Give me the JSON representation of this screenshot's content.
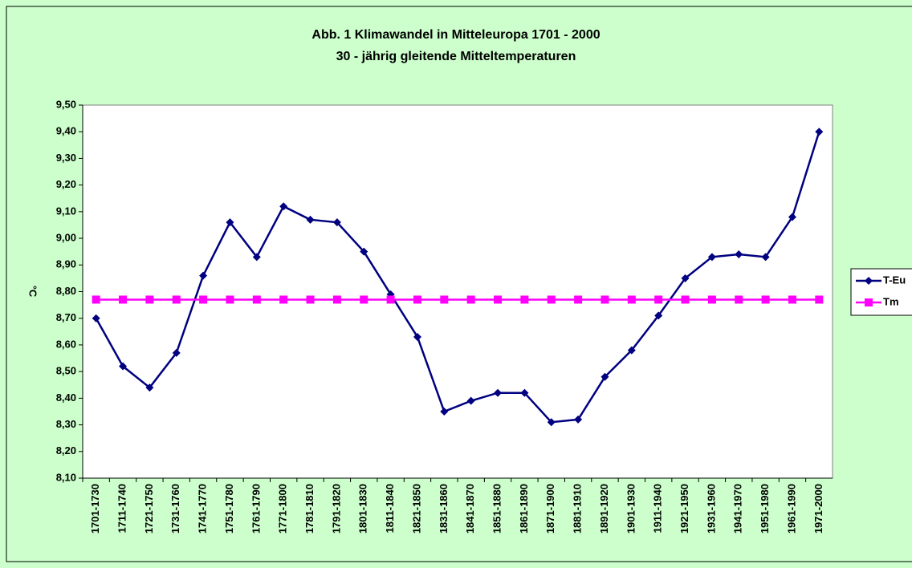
{
  "chart_data": {
    "type": "line",
    "title": "Abb. 1  Klimawandel in Mitteleuropa 1701 - 2000",
    "subtitle": "30 - jährig gleitende Mitteltemperaturen",
    "y_label": "°C",
    "categories": [
      "1701-1730",
      "1711-1740",
      "1721-1750",
      "1731-1760",
      "1741-1770",
      "1751-1780",
      "1761-1790",
      "1771-1800",
      "1781-1810",
      "1791-1820",
      "1801-1830",
      "1811-1840",
      "1821-1850",
      "1831-1860",
      "1841-1870",
      "1851-1880",
      "1861-1890",
      "1871-1900",
      "1881-1910",
      "1891-1920",
      "1901-1930",
      "1911-1940",
      "1921-1950",
      "1931-1960",
      "1941-1970",
      "1951-1980",
      "1961-1990",
      "1971-2000"
    ],
    "series": [
      {
        "name": "T-Eu",
        "color": "#000080",
        "marker": "diamond",
        "values": [
          8.7,
          8.52,
          8.44,
          8.57,
          8.86,
          9.06,
          8.93,
          9.12,
          9.07,
          9.06,
          8.95,
          8.79,
          8.63,
          8.35,
          8.39,
          8.42,
          8.42,
          8.31,
          8.32,
          8.48,
          8.58,
          8.71,
          8.85,
          8.93,
          8.94,
          8.93,
          9.08,
          9.4
        ]
      },
      {
        "name": "Tm",
        "color": "#ff00ff",
        "marker": "square",
        "values": [
          8.77,
          8.77,
          8.77,
          8.77,
          8.77,
          8.77,
          8.77,
          8.77,
          8.77,
          8.77,
          8.77,
          8.77,
          8.77,
          8.77,
          8.77,
          8.77,
          8.77,
          8.77,
          8.77,
          8.77,
          8.77,
          8.77,
          8.77,
          8.77,
          8.77,
          8.77,
          8.77,
          8.77
        ]
      }
    ],
    "ylim": [
      8.1,
      9.5
    ],
    "yticks": [
      {
        "value": 8.1,
        "label": "8,10"
      },
      {
        "value": 8.2,
        "label": "8,20"
      },
      {
        "value": 8.3,
        "label": "8,30"
      },
      {
        "value": 8.4,
        "label": "8,40"
      },
      {
        "value": 8.5,
        "label": "8,50"
      },
      {
        "value": 8.6,
        "label": "8,60"
      },
      {
        "value": 8.7,
        "label": "8,70"
      },
      {
        "value": 8.8,
        "label": "8,80"
      },
      {
        "value": 8.9,
        "label": "8,90"
      },
      {
        "value": 9.0,
        "label": "9,00"
      },
      {
        "value": 9.1,
        "label": "9,10"
      },
      {
        "value": 9.2,
        "label": "9,20"
      },
      {
        "value": 9.3,
        "label": "9,30"
      },
      {
        "value": 9.4,
        "label": "9,40"
      },
      {
        "value": 9.5,
        "label": "9,50"
      }
    ],
    "grid": false,
    "legend": "right"
  }
}
